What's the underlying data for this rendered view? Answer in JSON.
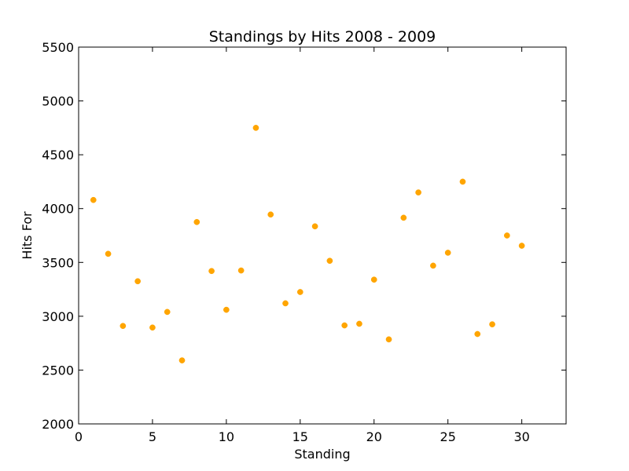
{
  "chart_data": {
    "type": "scatter",
    "title": "Standings by Hits 2008 - 2009",
    "xlabel": "Standing",
    "ylabel": "Hits For",
    "xlim": [
      0,
      33
    ],
    "ylim": [
      2000,
      5500
    ],
    "xticks": [
      0,
      5,
      10,
      15,
      20,
      25,
      30
    ],
    "yticks": [
      2000,
      2500,
      3000,
      3500,
      4000,
      4500,
      5000,
      5500
    ],
    "grid": false,
    "marker_color": "#ffa500",
    "series": [
      {
        "x": [
          1,
          2,
          3,
          4,
          5,
          6,
          7,
          8,
          9,
          10,
          11,
          12,
          13,
          14,
          15,
          16,
          17,
          18,
          19,
          20,
          21,
          22,
          23,
          24,
          25,
          26,
          27,
          28,
          29,
          30
        ],
        "y": [
          4080,
          3580,
          2910,
          3325,
          2895,
          3040,
          2590,
          3875,
          3420,
          3060,
          3425,
          4750,
          3945,
          3120,
          3225,
          3835,
          3515,
          2915,
          2930,
          3340,
          2785,
          3915,
          4150,
          3470,
          3590,
          4250,
          2835,
          2925,
          3750,
          3655
        ]
      }
    ]
  }
}
